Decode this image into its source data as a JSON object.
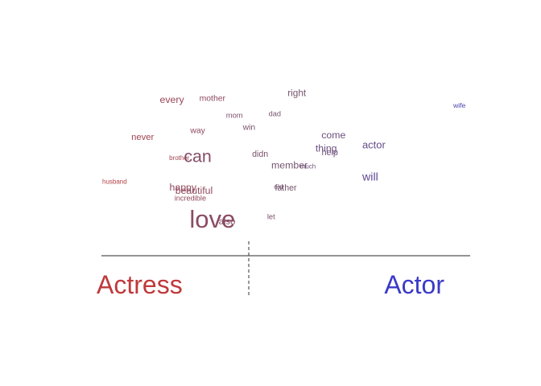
{
  "chart_data": {
    "type": "scatter",
    "left_label": "Actress",
    "right_label": "Actor",
    "colors": {
      "actress": "#c0393c",
      "actor": "#3a3ac8",
      "axis": "#555555",
      "divider": "#555555"
    },
    "words": [
      {
        "word": "right",
        "x": 0.53,
        "y": 0.86,
        "freq": 0.2,
        "lean": 0.45
      },
      {
        "word": "every",
        "x": 0.19,
        "y": 0.82,
        "freq": 0.22,
        "lean": 0.15
      },
      {
        "word": "mother",
        "x": 0.3,
        "y": 0.83,
        "freq": 0.14,
        "lean": 0.2
      },
      {
        "word": "wife",
        "x": 0.99,
        "y": 0.79,
        "freq": 0.07,
        "lean": 0.95
      },
      {
        "word": "mom",
        "x": 0.36,
        "y": 0.73,
        "freq": 0.1,
        "lean": 0.35
      },
      {
        "word": "dad",
        "x": 0.47,
        "y": 0.74,
        "freq": 0.09,
        "lean": 0.45
      },
      {
        "word": "win",
        "x": 0.4,
        "y": 0.66,
        "freq": 0.14,
        "lean": 0.4
      },
      {
        "word": "way",
        "x": 0.26,
        "y": 0.64,
        "freq": 0.14,
        "lean": 0.2
      },
      {
        "word": "never",
        "x": 0.11,
        "y": 0.6,
        "freq": 0.18,
        "lean": 0.1
      },
      {
        "word": "come",
        "x": 0.63,
        "y": 0.61,
        "freq": 0.22,
        "lean": 0.65
      },
      {
        "word": "actor",
        "x": 0.74,
        "y": 0.55,
        "freq": 0.25,
        "lean": 0.75
      },
      {
        "word": "thing",
        "x": 0.61,
        "y": 0.53,
        "freq": 0.22,
        "lean": 0.65
      },
      {
        "word": "help",
        "x": 0.62,
        "y": 0.51,
        "freq": 0.16,
        "lean": 0.65
      },
      {
        "word": "brother",
        "x": 0.21,
        "y": 0.48,
        "freq": 0.04,
        "lean": 0.1
      },
      {
        "word": "can",
        "x": 0.26,
        "y": 0.47,
        "freq": 0.6,
        "lean": 0.3
      },
      {
        "word": "didn",
        "x": 0.43,
        "y": 0.5,
        "freq": 0.15,
        "lean": 0.4
      },
      {
        "word": "member",
        "x": 0.51,
        "y": 0.43,
        "freq": 0.22,
        "lean": 0.5
      },
      {
        "word": "much",
        "x": 0.56,
        "y": 0.43,
        "freq": 0.04,
        "lean": 0.6
      },
      {
        "word": "will",
        "x": 0.73,
        "y": 0.36,
        "freq": 0.3,
        "lean": 0.8
      },
      {
        "word": "husband",
        "x": 0.0,
        "y": 0.34,
        "freq": 0.04,
        "lean": 0.0
      },
      {
        "word": "happy",
        "x": 0.22,
        "y": 0.3,
        "freq": 0.22,
        "lean": 0.2
      },
      {
        "word": "beautiful",
        "x": 0.25,
        "y": 0.28,
        "freq": 0.22,
        "lean": 0.2
      },
      {
        "word": "old",
        "x": 0.48,
        "y": 0.31,
        "freq": 0.06,
        "lean": 0.5
      },
      {
        "word": "father",
        "x": 0.5,
        "y": 0.3,
        "freq": 0.15,
        "lean": 0.45
      },
      {
        "word": "incredible",
        "x": 0.24,
        "y": 0.24,
        "freq": 0.09,
        "lean": 0.2
      },
      {
        "word": "let",
        "x": 0.46,
        "y": 0.13,
        "freq": 0.1,
        "lean": 0.4
      },
      {
        "word": "also",
        "x": 0.34,
        "y": 0.1,
        "freq": 0.18,
        "lean": 0.3
      },
      {
        "word": "love",
        "x": 0.3,
        "y": 0.08,
        "freq": 1.0,
        "lean": 0.25
      }
    ]
  }
}
